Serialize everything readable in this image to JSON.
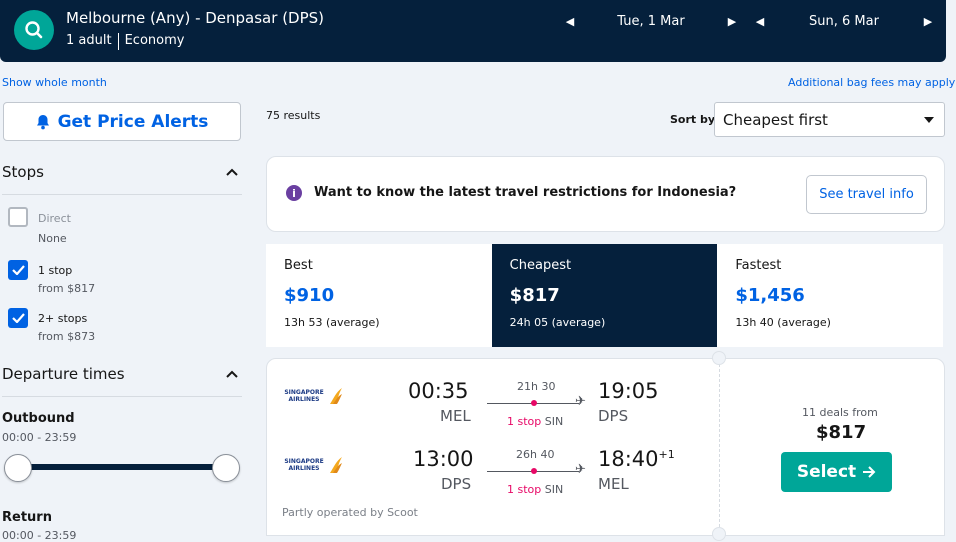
{
  "header": {
    "route": "Melbourne (Any) - Denpasar (DPS)",
    "passengers": "1 adult",
    "cabin": "Economy",
    "depart_date": "Tue, 1 Mar",
    "return_date": "Sun, 6 Mar",
    "prev_icon": "triangle-left-icon",
    "next_icon": "triangle-right-icon"
  },
  "links": {
    "show_month": "Show whole month",
    "bag_fees": "Additional bag fees may apply"
  },
  "alerts": {
    "label": "Get Price Alerts",
    "icon": "bell-icon"
  },
  "filters": {
    "stops_title": "Stops",
    "stops": [
      {
        "label": "Direct",
        "sub": "None",
        "checked": false
      },
      {
        "label": "1 stop",
        "sub": "from $817",
        "checked": true
      },
      {
        "label": "2+ stops",
        "sub": "from $873",
        "checked": true
      }
    ],
    "departure_title": "Departure times",
    "outbound_title": "Outbound",
    "outbound_range": "00:00 - 23:59",
    "return_title": "Return",
    "return_range": "00:00 - 23:59"
  },
  "results": {
    "count": "75 results",
    "sort_label": "Sort by",
    "sort_value": "Cheapest first"
  },
  "info_banner": {
    "text": "Want to know the latest travel restrictions for Indonesia?",
    "button": "See travel info",
    "accent": "#6a3fa1"
  },
  "tabs": [
    {
      "name": "Best",
      "price": "$910",
      "duration": "13h 53 (average)"
    },
    {
      "name": "Cheapest",
      "price": "$817",
      "duration": "24h 05 (average)",
      "active": true
    },
    {
      "name": "Fastest",
      "price": "$1,456",
      "duration": "13h 40 (average)"
    }
  ],
  "result": {
    "airline": "SINGAPORE AIRLINES",
    "legs": [
      {
        "depart_time": "00:35",
        "depart_code": "MEL",
        "duration": "21h 30",
        "stops": "1 stop",
        "via": "SIN",
        "arrive_time": "19:05",
        "arrive_code": "DPS",
        "day_offset": ""
      },
      {
        "depart_time": "13:00",
        "depart_code": "DPS",
        "duration": "26h 40",
        "stops": "1 stop",
        "via": "SIN",
        "arrive_time": "18:40",
        "arrive_code": "MEL",
        "day_offset": "+1"
      }
    ],
    "operated_note": "Partly operated by Scoot",
    "deals": "11 deals from",
    "price": "$817",
    "select_label": "Select"
  },
  "colors": {
    "navy": "#05203c",
    "accent_blue": "#0062e3",
    "teal": "#00a698",
    "stop_red": "#e70866"
  }
}
